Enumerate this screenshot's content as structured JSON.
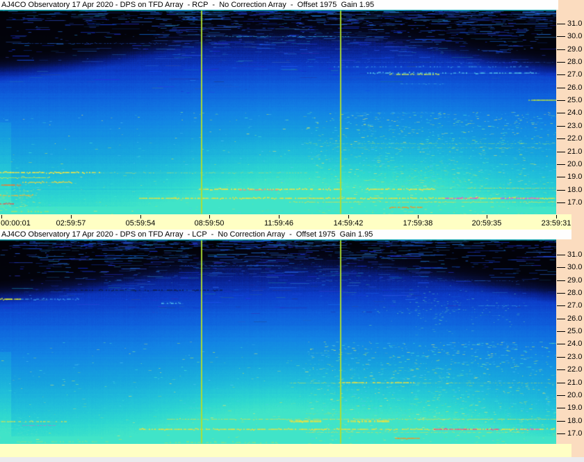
{
  "window": {
    "background_color": "#FBDCBF",
    "titlebar_color": "#FEFEFE",
    "time_strip_color": "#FFFFC4",
    "bottom_strip_color": "#EBEBEE",
    "text_color": "#000000"
  },
  "chart_data": [
    {
      "type": "heatmap",
      "title": "AJ4CO Observatory 17 Apr 2020 - DPS on TFD Array  - RCP  -  No Correction Array  -  Offset 1975  Gain 1.95",
      "channel": "RCP",
      "x_ticks": [
        "00:00:01",
        "02:59:57",
        "05:59:54",
        "08:59:50",
        "11:59:46",
        "14:59:42",
        "17:59:38",
        "20:59:35",
        "23:59:31"
      ],
      "y_ticks": [
        "31.0",
        "30.0",
        "29.0",
        "28.0",
        "27.0",
        "26.0",
        "25.0",
        "24.0",
        "23.0",
        "22.0",
        "21.0",
        "20.0",
        "19.0",
        "18.0",
        "17.0"
      ],
      "ylim": [
        16.0,
        32.0
      ],
      "xlim": [
        "00:00:01",
        "23:59:31"
      ],
      "marker_lines": [
        {
          "x_frac": 0.3625
        },
        {
          "x_frac": 0.6125
        }
      ],
      "marker_color": "#AEDC30",
      "render": {
        "seed": 11,
        "y31": 20,
        "step": 18.35,
        "palette": [
          [
            0.0,
            "#020208"
          ],
          [
            0.06,
            "#04061A"
          ],
          [
            0.12,
            "#060E3C"
          ],
          [
            0.2,
            "#08208C"
          ],
          [
            0.3,
            "#0C3CC8"
          ],
          [
            0.42,
            "#0E60DC"
          ],
          [
            0.56,
            "#1284E4"
          ],
          [
            0.7,
            "#16A2DE"
          ],
          [
            0.82,
            "#20BEDA"
          ],
          [
            0.93,
            "#2ED8D0"
          ],
          [
            1.0,
            "#40E4C8"
          ]
        ],
        "dark_top": {
          "base": 0.13,
          "side": 0.25,
          "center": 0.53,
          "width": 0.25,
          "soft": 0.13
        },
        "day_blob": {
          "cx": 0.53,
          "sx": 0.16,
          "cx2": 0.79,
          "sx2": 0.09,
          "k2": 0.45,
          "strength": 0.5
        },
        "dash_count": 1300,
        "dash_side": 0.62,
        "speckle_count": 1500,
        "speckle_colors": [
          "#48E8D0",
          "#7CE49C",
          "#BCE45C",
          "#58C8F0",
          "#E8E86C"
        ],
        "patches": [
          {
            "x": 0.78,
            "y": 0.82,
            "sx": 0.07,
            "sy": 0.06,
            "c": "#66DCA0",
            "n": 220
          },
          {
            "x": 0.03,
            "y": 0.92,
            "sx": 0.03,
            "sy": 0.05,
            "c": "#D8E45C",
            "n": 90
          }
        ],
        "rfi": [
          {
            "f": 30.0,
            "x0": 0.37,
            "x1": 0.63,
            "c": "#38C0F0",
            "a": 0.7,
            "h": 1,
            "d": 0.5
          },
          {
            "f": 29.5,
            "x0": 0.02,
            "x1": 0.3,
            "c": "#2050C0",
            "a": 0.6,
            "h": 1,
            "d": 0.5
          },
          {
            "f": 28.0,
            "x0": 0.55,
            "x1": 1.0,
            "c": "#2868D8",
            "a": 0.5,
            "h": 1,
            "d": 0.5
          },
          {
            "f": 27.6,
            "x0": 0.6,
            "x1": 0.95,
            "c": "#3A9AE8",
            "a": 0.6,
            "h": 2,
            "d": 0.35
          },
          {
            "f": 27.15,
            "x0": 0.66,
            "x1": 0.97,
            "c": "#54CCF0",
            "a": 0.8,
            "h": 2,
            "d": 0.5
          },
          {
            "f": 27.0,
            "x0": 0.7,
            "x1": 0.79,
            "c": "#C6E65A",
            "a": 0.9,
            "h": 2,
            "d": 0.6
          },
          {
            "f": 26.3,
            "x0": 0.72,
            "x1": 0.8,
            "c": "#44B8E8",
            "a": 0.5,
            "h": 1,
            "d": 0.4
          },
          {
            "f": 25.0,
            "x0": 0.95,
            "x1": 1.0,
            "c": "#BCE43C",
            "a": 0.9,
            "h": 2,
            "d": 0.9
          },
          {
            "f": 24.0,
            "x0": 0.6,
            "x1": 0.78,
            "c": "#38B0E0",
            "a": 0.35,
            "h": 1,
            "d": 0.4
          },
          {
            "f": 21.6,
            "x0": 0.55,
            "x1": 1.0,
            "c": "#80DC7C",
            "a": 0.45,
            "h": 1,
            "d": 0.5
          },
          {
            "f": 21.3,
            "x0": 0.6,
            "x1": 0.98,
            "c": "#A8DC60",
            "a": 0.35,
            "h": 1,
            "d": 0.4
          },
          {
            "f": 19.35,
            "x0": 0.0,
            "x1": 0.18,
            "c": "#E6E44A",
            "a": 0.95,
            "h": 2,
            "d": 0.8
          },
          {
            "f": 19.35,
            "x0": 0.18,
            "x1": 0.55,
            "c": "#CCE060",
            "a": 0.5,
            "h": 1,
            "d": 0.5
          },
          {
            "f": 18.95,
            "x0": 0.0,
            "x1": 0.09,
            "c": "#DCE83E",
            "a": 0.9,
            "h": 1,
            "d": 0.8
          },
          {
            "f": 18.6,
            "x0": 0.04,
            "x1": 0.13,
            "c": "#E6D642",
            "a": 0.85,
            "h": 2,
            "d": 0.7
          },
          {
            "f": 18.35,
            "x0": 0.0,
            "x1": 0.04,
            "c": "#EE7A32",
            "a": 0.9,
            "h": 2,
            "d": 0.8
          },
          {
            "f": 18.05,
            "x0": 0.355,
            "x1": 0.615,
            "c": "#E8E24C",
            "a": 0.95,
            "h": 2,
            "d": 0.75
          },
          {
            "f": 17.95,
            "x0": 0.43,
            "x1": 0.5,
            "c": "#E88A88",
            "a": 0.8,
            "h": 2,
            "d": 0.7
          },
          {
            "f": 18.05,
            "x0": 0.655,
            "x1": 0.785,
            "c": "#E8E24C",
            "a": 0.9,
            "h": 2,
            "d": 0.7
          },
          {
            "f": 18.12,
            "x0": 0.84,
            "x1": 1.0,
            "c": "#D8DC48",
            "a": 0.7,
            "h": 1,
            "d": 0.6
          },
          {
            "f": 17.55,
            "x0": 0.0,
            "x1": 0.06,
            "c": "#E8B83C",
            "a": 0.8,
            "h": 2,
            "d": 0.7
          },
          {
            "f": 17.3,
            "x0": 0.25,
            "x1": 1.0,
            "c": "#E6E042",
            "a": 0.9,
            "h": 2,
            "d": 0.85
          },
          {
            "f": 17.3,
            "x0": 0.8,
            "x1": 0.86,
            "c": "#D454D4",
            "a": 0.85,
            "h": 2,
            "d": 0.8
          },
          {
            "f": 17.3,
            "x0": 0.9,
            "x1": 0.97,
            "c": "#C858E8",
            "a": 0.8,
            "h": 2,
            "d": 0.7
          },
          {
            "f": 17.05,
            "x0": 0.52,
            "x1": 1.0,
            "c": "#DCE246",
            "a": 0.8,
            "h": 1,
            "d": 0.7
          },
          {
            "f": 16.9,
            "x0": 0.0,
            "x1": 0.025,
            "c": "#E85050",
            "a": 0.8,
            "h": 2,
            "d": 0.8
          },
          {
            "f": 16.6,
            "x0": 0.7,
            "x1": 0.76,
            "c": "#F09228",
            "a": 0.9,
            "h": 2,
            "d": 0.9
          },
          {
            "f": 16.35,
            "x0": 0.45,
            "x1": 0.64,
            "c": "#54E0B4",
            "a": 0.5,
            "h": 2,
            "d": 0.5
          },
          {
            "f": 16.3,
            "x0": 0.02,
            "x1": 0.1,
            "c": "#BCE45C",
            "a": 0.6,
            "h": 2,
            "d": 0.5
          }
        ]
      }
    },
    {
      "type": "heatmap",
      "title": "AJ4CO Observatory 17 Apr 2020 - DPS on TFD Array  - LCP  -  No Correction Array  -  Offset 1975  Gain 1.95",
      "channel": "LCP",
      "x_ticks": [],
      "y_ticks": [
        "31.0",
        "30.0",
        "29.0",
        "28.0",
        "27.0",
        "26.0",
        "25.0",
        "24.0",
        "23.0",
        "22.0",
        "21.0",
        "20.0",
        "19.0",
        "18.0",
        "17.0"
      ],
      "ylim": [
        16.0,
        32.0
      ],
      "xlim": [
        "00:00:01",
        "23:59:31"
      ],
      "marker_lines": [
        {
          "x_frac": 0.3625
        },
        {
          "x_frac": 0.6125
        }
      ],
      "marker_color": "#AEDC30",
      "render": {
        "seed": 29,
        "y31": 22,
        "step": 18.35,
        "palette": [
          [
            0.0,
            "#020208"
          ],
          [
            0.06,
            "#04061A"
          ],
          [
            0.12,
            "#060E3C"
          ],
          [
            0.2,
            "#08208C"
          ],
          [
            0.3,
            "#0C3CC8"
          ],
          [
            0.42,
            "#0E60DC"
          ],
          [
            0.56,
            "#1284E4"
          ],
          [
            0.7,
            "#16A2DE"
          ],
          [
            0.82,
            "#20BEDA"
          ],
          [
            0.93,
            "#2ED8D0"
          ],
          [
            1.0,
            "#40E4C8"
          ]
        ],
        "dark_top": {
          "base": 0.12,
          "side": 0.24,
          "center": 0.52,
          "width": 0.26,
          "soft": 0.13
        },
        "day_blob": {
          "cx": 0.52,
          "sx": 0.18,
          "cx2": 0.8,
          "sx2": 0.09,
          "k2": 0.4,
          "strength": 0.55
        },
        "dash_count": 1200,
        "dash_side": 0.4,
        "speckle_count": 1500,
        "speckle_colors": [
          "#48E8D0",
          "#7CE49C",
          "#BCE45C",
          "#58C8F0",
          "#E8E86C"
        ],
        "patches": [
          {
            "x": 0.8,
            "y": 0.35,
            "sx": 0.1,
            "sy": 0.08,
            "c": "#58C8B8",
            "n": 150
          },
          {
            "x": 0.75,
            "y": 0.9,
            "sx": 0.1,
            "sy": 0.06,
            "c": "#66DCA0",
            "n": 180
          },
          {
            "x": 0.04,
            "y": 0.93,
            "sx": 0.04,
            "sy": 0.05,
            "c": "#58E0C8",
            "n": 90
          }
        ],
        "rfi": [
          {
            "f": 30.2,
            "x0": 0.3,
            "x1": 0.52,
            "c": "#2858C8",
            "a": 0.5,
            "h": 1,
            "d": 0.5
          },
          {
            "f": 29.0,
            "x0": 0.55,
            "x1": 0.95,
            "c": "#2050B8",
            "a": 0.5,
            "h": 1,
            "d": 0.5
          },
          {
            "f": 28.2,
            "x0": 0.02,
            "x1": 0.4,
            "c": "#0A1430",
            "a": 0.6,
            "h": 2,
            "d": 0.5
          },
          {
            "f": 27.5,
            "x0": 0.0,
            "x1": 0.035,
            "c": "#D8E232",
            "a": 0.95,
            "h": 2,
            "d": 0.9
          },
          {
            "f": 27.5,
            "x0": 0.035,
            "x1": 0.14,
            "c": "#3C96E8",
            "a": 0.7,
            "h": 2,
            "d": 0.6
          },
          {
            "f": 27.2,
            "x0": 0.29,
            "x1": 0.33,
            "c": "#54C8F0",
            "a": 0.8,
            "h": 2,
            "d": 0.6
          },
          {
            "f": 27.0,
            "x0": 0.86,
            "x1": 0.95,
            "c": "#44B0E8",
            "a": 0.5,
            "h": 1,
            "d": 0.5
          },
          {
            "f": 26.5,
            "x0": 0.05,
            "x1": 0.3,
            "c": "#1C50C8",
            "a": 0.5,
            "h": 1,
            "d": 0.4
          },
          {
            "f": 23.3,
            "x0": 0.55,
            "x1": 0.65,
            "c": "#58C8B8",
            "a": 0.4,
            "h": 1,
            "d": 0.4
          },
          {
            "f": 21.0,
            "x0": 0.52,
            "x1": 0.61,
            "c": "#BCE05A",
            "a": 0.6,
            "h": 1,
            "d": 0.5
          },
          {
            "f": 21.0,
            "x0": 0.61,
            "x1": 0.745,
            "c": "#E2DE44",
            "a": 0.9,
            "h": 2,
            "d": 0.75
          },
          {
            "f": 21.0,
            "x0": 0.745,
            "x1": 1.0,
            "c": "#C8DC54",
            "a": 0.5,
            "h": 1,
            "d": 0.5
          },
          {
            "f": 19.0,
            "x0": 0.33,
            "x1": 0.4,
            "c": "#58D8C8",
            "a": 0.6,
            "h": 1,
            "d": 0.5
          },
          {
            "f": 18.6,
            "x0": 0.55,
            "x1": 0.62,
            "c": "#A0DC64",
            "a": 0.5,
            "h": 1,
            "d": 0.5
          },
          {
            "f": 18.15,
            "x0": 0.3,
            "x1": 1.0,
            "c": "#DCE046",
            "a": 0.8,
            "h": 1,
            "d": 0.7
          },
          {
            "f": 18.0,
            "x0": 0.52,
            "x1": 0.58,
            "c": "#E8E240",
            "a": 0.95,
            "h": 3,
            "d": 0.85
          },
          {
            "f": 18.0,
            "x0": 0.625,
            "x1": 0.7,
            "c": "#E8E240",
            "a": 0.95,
            "h": 3,
            "d": 0.85
          },
          {
            "f": 17.9,
            "x0": 0.0,
            "x1": 0.12,
            "c": "#D8E24A",
            "a": 0.7,
            "h": 2,
            "d": 0.6
          },
          {
            "f": 17.65,
            "x0": 0.04,
            "x1": 0.1,
            "c": "#E05ACC",
            "a": 0.6,
            "h": 1,
            "d": 0.6
          },
          {
            "f": 17.3,
            "x0": 0.25,
            "x1": 1.0,
            "c": "#E4E042",
            "a": 0.9,
            "h": 2,
            "d": 0.8
          },
          {
            "f": 17.3,
            "x0": 0.78,
            "x1": 0.9,
            "c": "#E04898",
            "a": 0.8,
            "h": 2,
            "d": 0.7
          },
          {
            "f": 17.3,
            "x0": 0.93,
            "x1": 0.97,
            "c": "#CC58E0",
            "a": 0.7,
            "h": 2,
            "d": 0.6
          },
          {
            "f": 17.1,
            "x0": 0.55,
            "x1": 0.95,
            "c": "#D8E048",
            "a": 0.6,
            "h": 1,
            "d": 0.6
          },
          {
            "f": 16.6,
            "x0": 0.71,
            "x1": 0.755,
            "c": "#F09228",
            "a": 0.9,
            "h": 2,
            "d": 0.9
          },
          {
            "f": 16.35,
            "x0": 0.03,
            "x1": 0.2,
            "c": "#7CE49C",
            "a": 0.6,
            "h": 2,
            "d": 0.5
          },
          {
            "f": 16.3,
            "x0": 0.3,
            "x1": 0.5,
            "c": "#BCE45C",
            "a": 0.5,
            "h": 2,
            "d": 0.5
          }
        ]
      }
    }
  ]
}
